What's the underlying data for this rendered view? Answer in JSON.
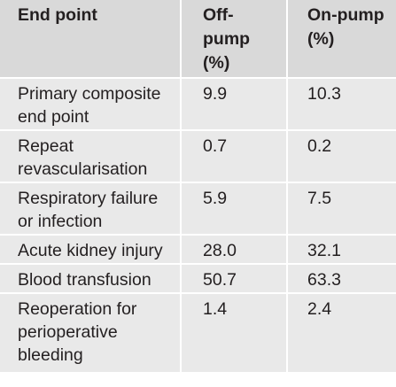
{
  "table": {
    "headers": [
      "End point",
      "Off-\npump\n(%)",
      "On-pump\n(%)"
    ],
    "rows": [
      {
        "end_point": "Primary composite end point",
        "off_pump": "9.9",
        "on_pump": "10.3"
      },
      {
        "end_point": "Repeat revascularisation",
        "off_pump": "0.7",
        "on_pump": "0.2"
      },
      {
        "end_point": "Respiratory failure or infection",
        "off_pump": "5.9",
        "on_pump": "7.5"
      },
      {
        "end_point": "Acute kidney injury",
        "off_pump": "28.0",
        "on_pump": "32.1"
      },
      {
        "end_point": "Blood transfusion",
        "off_pump": "50.7",
        "on_pump": "63.3"
      },
      {
        "end_point": "Reoperation for perioperative bleeding",
        "off_pump": "1.4",
        "on_pump": "2.4"
      }
    ]
  }
}
